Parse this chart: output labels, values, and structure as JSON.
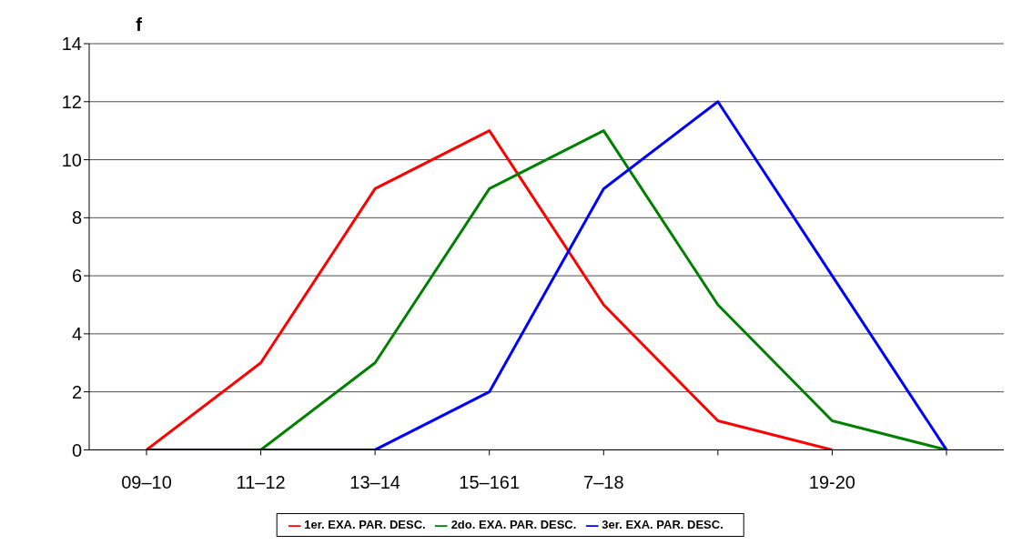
{
  "chart_data": {
    "type": "line",
    "ylabel": "f",
    "categories": [
      "09–10",
      "11–12",
      "13–14",
      "15–161",
      "7–18",
      null,
      "19-20",
      null
    ],
    "series": [
      {
        "name": "1er. EXA. PAR. DESC.",
        "color": "#ff0000",
        "values": [
          0,
          3,
          9,
          11,
          5,
          1,
          0,
          null
        ]
      },
      {
        "name": "2do. EXA. PAR. DESC.",
        "color": "#008000",
        "values": [
          null,
          0,
          3,
          9,
          11,
          5,
          1,
          0
        ]
      },
      {
        "name": "3er. EXA. PAR. DESC.",
        "color": "#0000ff",
        "values": [
          0,
          0,
          0,
          2,
          9,
          12,
          6,
          0
        ]
      }
    ],
    "ylim": [
      0,
      14
    ],
    "yticks": [
      0,
      2,
      4,
      6,
      8,
      10,
      12,
      14
    ],
    "grid": "y",
    "legend": "bottom",
    "marker": "none",
    "line_style": "solid"
  }
}
